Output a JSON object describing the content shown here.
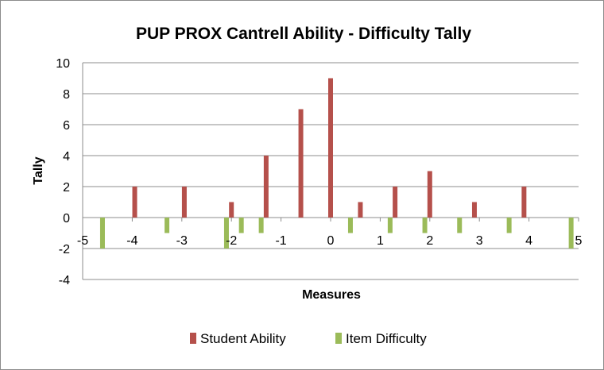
{
  "chart_data": {
    "type": "bar",
    "title": "PUP PROX Cantrell Ability - Difficulty Tally",
    "xlabel": "Measures",
    "ylabel": "Tally",
    "xlim": [
      -5,
      5
    ],
    "ylim": [
      -4,
      10
    ],
    "x_ticks": [
      "-5",
      "-4",
      "-3",
      "-2",
      "-1",
      "0",
      "1",
      "2",
      "3",
      "4",
      "5"
    ],
    "y_ticks": [
      "10",
      "8",
      "6",
      "4",
      "2",
      "0",
      "-2",
      "-4"
    ],
    "grid": "horizontal",
    "legend_position": "bottom",
    "series": [
      {
        "name": "Student Ability",
        "color": "#b5504b",
        "x": [
          -3.95,
          -2.95,
          -2.0,
          -1.3,
          -0.6,
          0.0,
          0.6,
          1.3,
          2.0,
          2.9,
          3.9
        ],
        "values": [
          2,
          2,
          1,
          4,
          7,
          9,
          1,
          2,
          3,
          1,
          2
        ]
      },
      {
        "name": "Item Difficulty",
        "color": "#9bbb59",
        "x": [
          -4.6,
          -3.3,
          -2.1,
          -1.8,
          -1.4,
          0.4,
          1.2,
          1.9,
          2.6,
          3.6,
          4.85
        ],
        "values": [
          -2,
          -1,
          -2,
          -1,
          -1,
          -1,
          -1,
          -1,
          -1,
          -1,
          -2
        ]
      }
    ]
  }
}
